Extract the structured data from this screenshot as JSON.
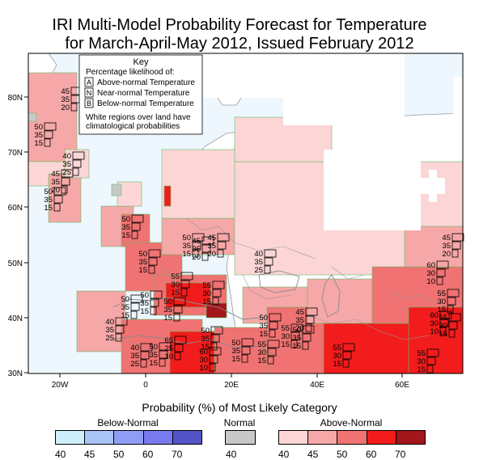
{
  "title": {
    "line1": "IRI Multi-Model Probability Forecast for Temperature",
    "line2": "for March-April-May 2012, Issued February 2012"
  },
  "map": {
    "lat_labels": [
      "80N",
      "70N",
      "60N",
      "50N",
      "40N",
      "30N"
    ],
    "lon_labels": [
      "20W",
      "0",
      "20E",
      "40E",
      "60E"
    ],
    "ocean_color": "#eef7fd",
    "land_outline_color": "#9a9a9a",
    "region_outline_color": "#66bb66"
  },
  "key": {
    "title": "Key",
    "subtitle": "Percentage likelihood of:",
    "items": [
      {
        "letter": "A",
        "text": "Above-normal Temperature"
      },
      {
        "letter": "N",
        "text": "Near-normal Temperature"
      },
      {
        "letter": "B",
        "text": "Below-normal Temperature"
      }
    ],
    "note_line1": "White regions over land have",
    "note_line2": "climatological probabilities"
  },
  "prob_labels": [
    {
      "a": "45",
      "n": "35",
      "b": "20"
    },
    {
      "a": "50",
      "n": "35",
      "b": "15"
    },
    {
      "a": "40",
      "n": "35",
      "b": "25"
    },
    {
      "a": "45",
      "n": "35",
      "b": "20"
    },
    {
      "a": "50",
      "n": "35",
      "b": "15"
    },
    {
      "a": "50",
      "n": "35",
      "b": "15"
    },
    {
      "a": "50",
      "n": "35",
      "b": "15"
    },
    {
      "a": "50",
      "n": "35",
      "b": "15"
    },
    {
      "a": "45",
      "n": "35",
      "b": "20"
    },
    {
      "a": "40",
      "n": "35",
      "b": "25"
    },
    {
      "a": "45",
      "n": "35",
      "b": "20"
    },
    {
      "a": "55",
      "n": "30",
      "b": "15"
    },
    {
      "a": "60",
      "n": "30",
      "b": "10"
    },
    {
      "a": "50",
      "n": "35",
      "b": "15"
    },
    {
      "a": "50",
      "n": "35",
      "b": "15"
    },
    {
      "a": "50",
      "n": "35",
      "b": "15"
    },
    {
      "a": "55",
      "n": "30",
      "b": "15"
    },
    {
      "a": "40",
      "n": "35",
      "b": "25"
    },
    {
      "a": "40",
      "n": "35",
      "b": "25"
    },
    {
      "a": "65",
      "n": "25",
      "b": "10"
    },
    {
      "a": "50",
      "n": "35",
      "b": "15"
    },
    {
      "a": "60",
      "n": "30",
      "b": "10"
    },
    {
      "a": "50",
      "n": "35",
      "b": "15"
    },
    {
      "a": "45",
      "n": "35",
      "b": "20"
    },
    {
      "a": "55",
      "n": "30",
      "b": "15"
    },
    {
      "a": "50",
      "n": "35",
      "b": "15"
    },
    {
      "a": "55",
      "n": "30",
      "b": "15"
    },
    {
      "a": "50",
      "n": "35",
      "b": "15"
    },
    {
      "a": "55",
      "n": "30",
      "b": "15"
    },
    {
      "a": "60",
      "n": "30",
      "b": "10"
    },
    {
      "a": "55",
      "n": "30",
      "b": "15"
    },
    {
      "a": "55",
      "n": "30",
      "b": "15"
    },
    {
      "a": "45",
      "n": "35",
      "b": "20"
    },
    {
      "a": "50",
      "n": "35",
      "b": "15"
    },
    {
      "a": "55",
      "n": "30",
      "b": "15"
    }
  ],
  "legend": {
    "title": "Probability (%) of Most Likely Category",
    "below": {
      "label": "Below-Normal",
      "colors": [
        "#cfeefb",
        "#aac4f6",
        "#8f9ef4",
        "#7a7aef",
        "#5454c6"
      ],
      "ticks": [
        "40",
        "45",
        "50",
        "60",
        "70"
      ]
    },
    "normal": {
      "label": "Normal",
      "colors": [
        "#c8c8c8"
      ],
      "ticks": [
        "40"
      ]
    },
    "above": {
      "label": "Above-Normal",
      "colors": [
        "#fcd6d6",
        "#f6a7a7",
        "#f07272",
        "#f21c1c",
        "#a3161b"
      ],
      "ticks": [
        "40",
        "45",
        "50",
        "60",
        "70"
      ]
    }
  }
}
